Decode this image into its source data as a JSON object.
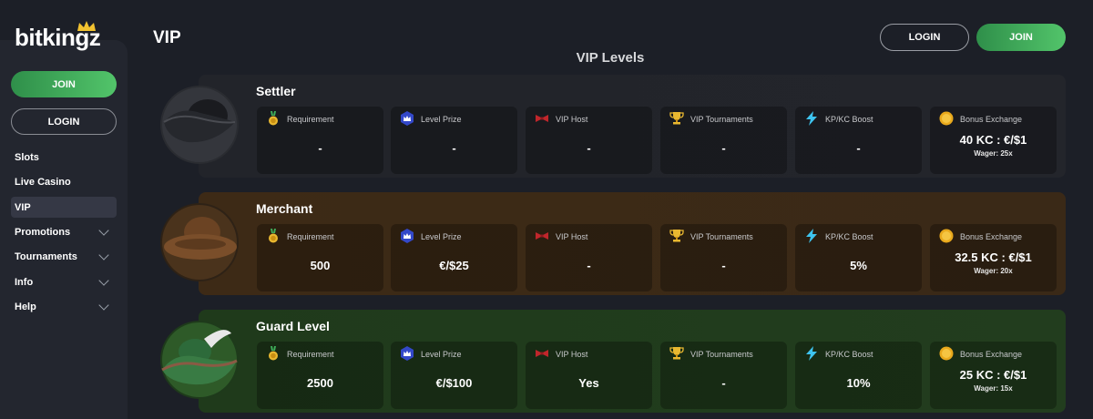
{
  "brand": {
    "name": "bitkingz"
  },
  "sidebar": {
    "join_label": "JOIN",
    "login_label": "LOGIN",
    "items": [
      {
        "label": "Slots"
      },
      {
        "label": "Live Casino"
      },
      {
        "label": "VIP"
      },
      {
        "label": "Promotions"
      },
      {
        "label": "Tournaments"
      },
      {
        "label": "Info"
      },
      {
        "label": "Help"
      }
    ]
  },
  "header": {
    "title": "VIP",
    "login_label": "LOGIN",
    "join_label": "JOIN"
  },
  "section": {
    "title": "VIP Levels"
  },
  "colors": {
    "settler": "#1f2127",
    "merchant": "#3a2816",
    "guard": "#1f3a1c",
    "accent_green": "#4bb866"
  },
  "levels": [
    {
      "name": "Settler",
      "hat_icon": "tricorn-hat-icon",
      "cards": [
        {
          "label": "Requirement",
          "value": "-",
          "icon": "medal-icon"
        },
        {
          "label": "Level Prize",
          "value": "-",
          "icon": "crown-badge-icon"
        },
        {
          "label": "VIP Host",
          "value": "-",
          "icon": "bowtie-icon"
        },
        {
          "label": "VIP Tournaments",
          "value": "-",
          "icon": "trophy-icon"
        },
        {
          "label": "KP/KC Boost",
          "value": "-",
          "icon": "lightning-icon"
        },
        {
          "label": "Bonus Exchange",
          "value": "40 KC : €/$1",
          "sub": "Wager: 25x",
          "icon": "coin-icon"
        }
      ]
    },
    {
      "name": "Merchant",
      "hat_icon": "brown-hat-icon",
      "cards": [
        {
          "label": "Requirement",
          "value": "500",
          "icon": "medal-icon"
        },
        {
          "label": "Level Prize",
          "value": "€/$25",
          "icon": "crown-badge-icon"
        },
        {
          "label": "VIP Host",
          "value": "-",
          "icon": "bowtie-icon"
        },
        {
          "label": "VIP Tournaments",
          "value": "-",
          "icon": "trophy-icon"
        },
        {
          "label": "KP/KC Boost",
          "value": "5%",
          "icon": "lightning-icon"
        },
        {
          "label": "Bonus Exchange",
          "value": "32.5 KC : €/$1",
          "sub": "Wager: 20x",
          "icon": "coin-icon"
        }
      ]
    },
    {
      "name": "Guard Level",
      "hat_icon": "feathered-hat-icon",
      "cards": [
        {
          "label": "Requirement",
          "value": "2500",
          "icon": "medal-icon"
        },
        {
          "label": "Level Prize",
          "value": "€/$100",
          "icon": "crown-badge-icon"
        },
        {
          "label": "VIP Host",
          "value": "Yes",
          "icon": "bowtie-icon"
        },
        {
          "label": "VIP Tournaments",
          "value": "-",
          "icon": "trophy-icon"
        },
        {
          "label": "KP/KC Boost",
          "value": "10%",
          "icon": "lightning-icon"
        },
        {
          "label": "Bonus Exchange",
          "value": "25 KC : €/$1",
          "sub": "Wager: 15x",
          "icon": "coin-icon"
        }
      ]
    }
  ]
}
